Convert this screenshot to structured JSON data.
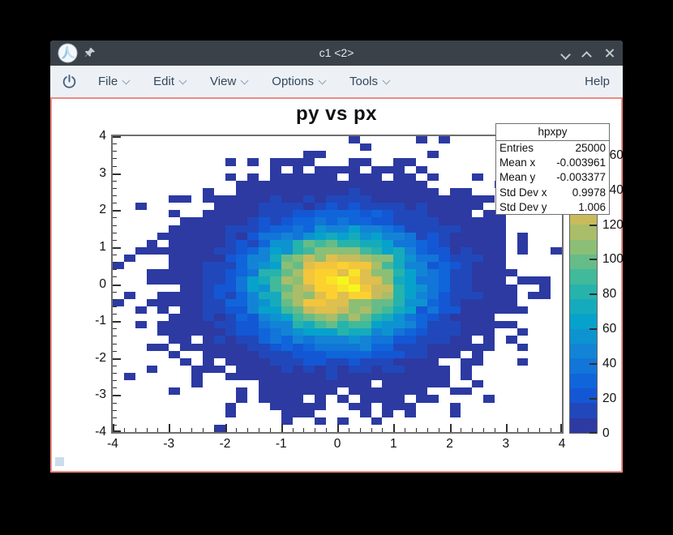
{
  "window": {
    "title": "c1 <2>"
  },
  "menubar": {
    "items": [
      {
        "label": "File"
      },
      {
        "label": "Edit"
      },
      {
        "label": "View"
      },
      {
        "label": "Options"
      },
      {
        "label": "Tools"
      }
    ],
    "help_label": "Help"
  },
  "stats_box": {
    "title": "hpxpy",
    "rows": [
      {
        "label": "Entries",
        "value": "25000"
      },
      {
        "label": "Mean x",
        "value": "-0.003961"
      },
      {
        "label": "Mean y",
        "value": "-0.003377"
      },
      {
        "label": "Std Dev x",
        "value": "0.9978"
      },
      {
        "label": "Std Dev y",
        "value": "1.006"
      }
    ]
  },
  "chart_data": {
    "type": "heatmap",
    "title": "py vs px",
    "histogram_name": "hpxpy",
    "entries": 25000,
    "mean_x": -0.003961,
    "mean_y": -0.003377,
    "std_dev_x": 0.9978,
    "std_dev_y": 1.006,
    "x_range": [
      -4,
      4
    ],
    "y_range": [
      -4,
      4
    ],
    "x_bins": 40,
    "y_bins": 40,
    "x_ticks": [
      -4,
      -3,
      -2,
      -1,
      0,
      1,
      2,
      3,
      4
    ],
    "y_ticks": [
      -4,
      -3,
      -2,
      -1,
      0,
      1,
      2,
      3,
      4
    ],
    "z_ticks": [
      0,
      20,
      40,
      60,
      80,
      100,
      120,
      140,
      160
    ],
    "z_max_approx": 172,
    "minor_ticks_per_unit": 4,
    "grid": false,
    "distribution": "2D standard normal distribution of 25000 entries binned 40x40 over [-4,4]x[-4,4]",
    "n_contours": 20,
    "palette_name": "ROOT kBird",
    "palette_stops": [
      [
        0.0,
        "#2c3aa2"
      ],
      [
        0.125,
        "#0f5cdd"
      ],
      [
        0.25,
        "#1480d6"
      ],
      [
        0.375,
        "#06a4ca"
      ],
      [
        0.5,
        "#2eb7a4"
      ],
      [
        0.625,
        "#87bf77"
      ],
      [
        0.75,
        "#d1bb59"
      ],
      [
        0.875,
        "#fec932"
      ],
      [
        1.0,
        "#f4f71e"
      ]
    ]
  }
}
